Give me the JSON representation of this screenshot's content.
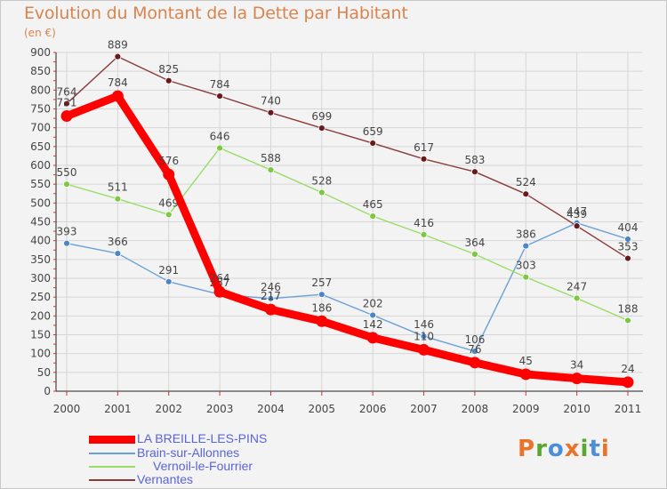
{
  "header": {
    "title": "Evolution du Montant de la Dette par Habitant",
    "unit": "(en €)"
  },
  "logo": {
    "letters": [
      {
        "char": "P",
        "color": "#e8742c"
      },
      {
        "char": "r",
        "color": "#5aa632"
      },
      {
        "char": "o",
        "color": "#4a8fd8"
      },
      {
        "char": "x",
        "color": "#e8742c"
      },
      {
        "char": "i",
        "color": "#5aa632"
      },
      {
        "char": "t",
        "color": "#4a8fd8"
      },
      {
        "char": "i",
        "color": "#e8742c"
      }
    ]
  },
  "chart_data": {
    "type": "line",
    "title": "Evolution du Montant de la Dette par Habitant",
    "subtitle": "(en €)",
    "x": [
      "2000",
      "2001",
      "2002",
      "2003",
      "2004",
      "2005",
      "2006",
      "2007",
      "2008",
      "2009",
      "2010",
      "2011"
    ],
    "ylim": [
      0,
      900
    ],
    "yticks": [
      0,
      50,
      100,
      150,
      200,
      250,
      300,
      350,
      400,
      450,
      500,
      550,
      600,
      650,
      700,
      750,
      800,
      850,
      900
    ],
    "grid": true,
    "legend_position": "bottom-left",
    "series": [
      {
        "name": "LA BREILLE-LES-PINS",
        "color": "#ff0000",
        "marker": "#ff0000",
        "style": "thick",
        "values": [
          731,
          784,
          576,
          264,
          217,
          186,
          142,
          110,
          76,
          45,
          34,
          24
        ],
        "labels": [
          "731",
          "784",
          "576",
          "264",
          "217",
          "186",
          "142",
          "110",
          "76",
          "45",
          "34",
          "24"
        ]
      },
      {
        "name": "Brain-sur-Allonnes",
        "color": "#6aa0d8",
        "marker": "#4a86c8",
        "style": "thin",
        "values": [
          393,
          366,
          291,
          257,
          246,
          257,
          202,
          146,
          106,
          386,
          447,
          404
        ],
        "labels": [
          "393",
          "366",
          "291",
          "257",
          "246",
          "257",
          "202",
          "146",
          "106",
          "386",
          "447",
          "404"
        ]
      },
      {
        "name": "Vernoil-le-Fourrier",
        "color": "#99dd66",
        "marker": "#7cc840",
        "style": "thin",
        "values": [
          550,
          511,
          469,
          646,
          588,
          528,
          465,
          416,
          364,
          303,
          247,
          188
        ],
        "labels": [
          "550",
          "511",
          "469",
          "646",
          "588",
          "528",
          "465",
          "416",
          "364",
          "303",
          "247",
          "188"
        ]
      },
      {
        "name": "Vernantes",
        "color": "#8b3a3a",
        "marker": "#6b1a1a",
        "style": "thin",
        "values": [
          764,
          889,
          825,
          784,
          740,
          699,
          659,
          617,
          583,
          524,
          439,
          353
        ],
        "labels": [
          "764",
          "889",
          "825",
          "784",
          "740",
          "699",
          "659",
          "617",
          "583",
          "524",
          "439",
          "353"
        ]
      }
    ]
  }
}
